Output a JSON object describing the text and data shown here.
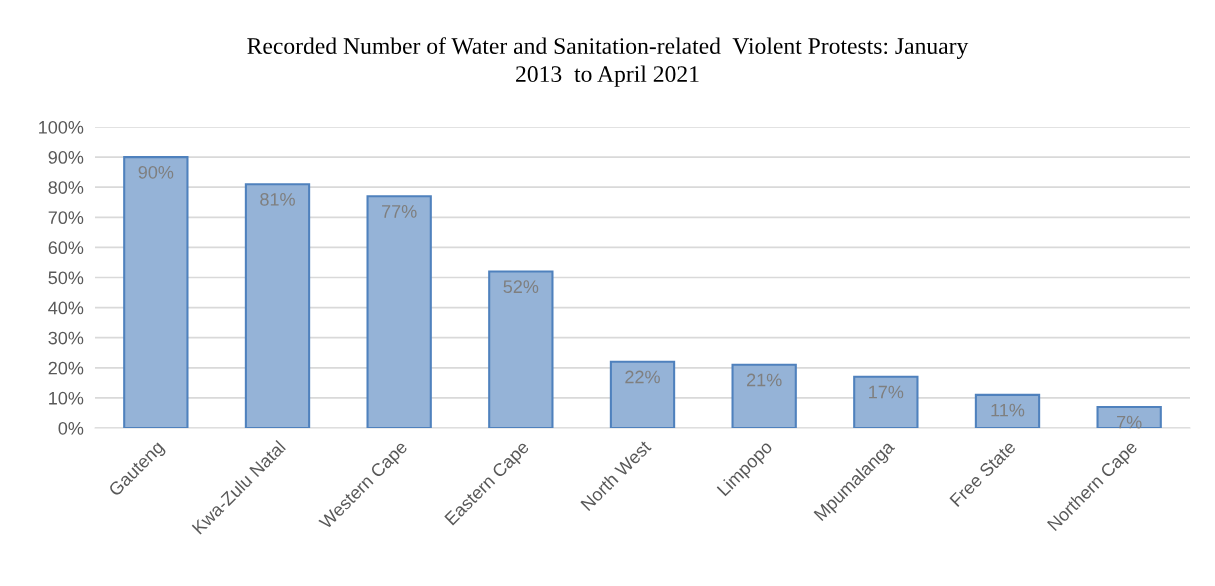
{
  "chart_data": {
    "type": "bar",
    "title": "Recorded Number of Water and Sanitation-related  Violent Protests: January\n2013  to April 2021",
    "categories": [
      "Gauteng",
      "Kwa-Zulu Natal",
      "Western Cape",
      "Eastern Cape",
      "North West",
      "Limpopo",
      "Mpumalanga",
      "Free State",
      "Northern Cape"
    ],
    "values": [
      90,
      81,
      77,
      52,
      22,
      21,
      17,
      11,
      7
    ],
    "value_labels": [
      "90%",
      "81%",
      "77%",
      "52%",
      "22%",
      "21%",
      "17%",
      "11%",
      "7%"
    ],
    "color": "#95b3d7",
    "ylim": [
      0,
      100
    ],
    "yticks": [
      {
        "value": 0,
        "label": "0%"
      },
      {
        "value": 10,
        "label": "10%"
      },
      {
        "value": 20,
        "label": "20%"
      },
      {
        "value": 30,
        "label": "30%"
      },
      {
        "value": 40,
        "label": "40%"
      },
      {
        "value": 50,
        "label": "50%"
      },
      {
        "value": 60,
        "label": "60%"
      },
      {
        "value": 70,
        "label": "70%"
      },
      {
        "value": 80,
        "label": "80%"
      },
      {
        "value": 90,
        "label": "90%"
      },
      {
        "value": 100,
        "label": "100%"
      }
    ],
    "grid": "y"
  }
}
